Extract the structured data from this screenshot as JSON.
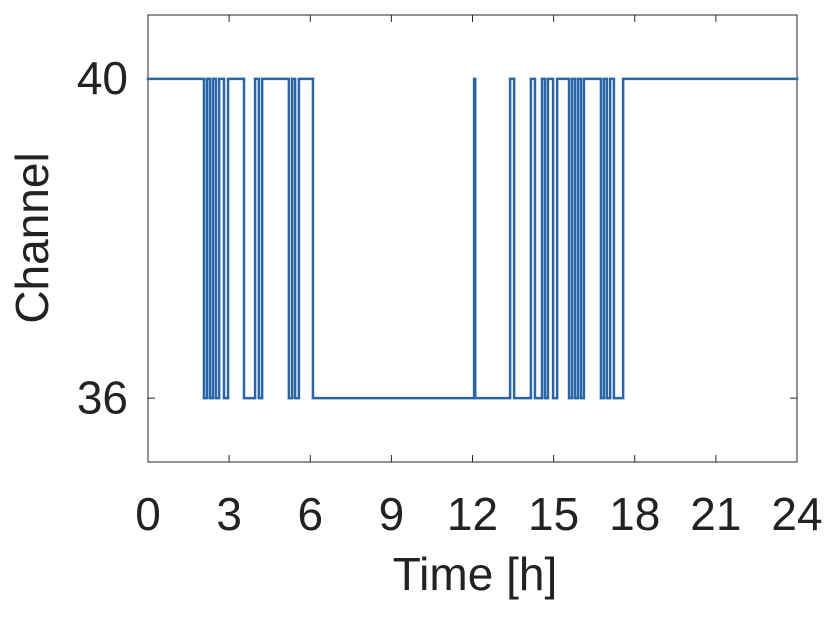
{
  "chart_data": {
    "type": "step",
    "x_label": "Time [h]",
    "y_label": "Channel",
    "xlim": [
      0,
      24
    ],
    "xticks": [
      0,
      3,
      6,
      9,
      12,
      15,
      18,
      21,
      24
    ],
    "ylim": [
      35.2,
      40.8
    ],
    "yticks": [
      36,
      40
    ],
    "color": "#2a65a8",
    "x": [
      0,
      2.07,
      2.18,
      2.29,
      2.4,
      2.51,
      2.63,
      2.81,
      2.96,
      3.55,
      3.96,
      4.1,
      4.22,
      5.21,
      5.33,
      5.44,
      5.58,
      6.1,
      12.06,
      12.1,
      13.39,
      13.54,
      14.16,
      14.31,
      14.57,
      14.68,
      14.79,
      14.98,
      15.13,
      15.57,
      15.68,
      15.79,
      15.9,
      16.01,
      16.12,
      16.75,
      16.86,
      16.97,
      17.09,
      17.23,
      17.57,
      24
    ],
    "values": [
      40,
      36,
      40,
      36,
      40,
      36,
      40,
      36,
      40,
      36,
      40,
      36,
      40,
      36,
      40,
      36,
      40,
      36,
      40,
      36,
      40,
      36,
      40,
      36,
      40,
      36,
      40,
      36,
      40,
      36,
      40,
      36,
      40,
      36,
      40,
      36,
      40,
      36,
      40,
      36,
      40,
      40
    ]
  }
}
